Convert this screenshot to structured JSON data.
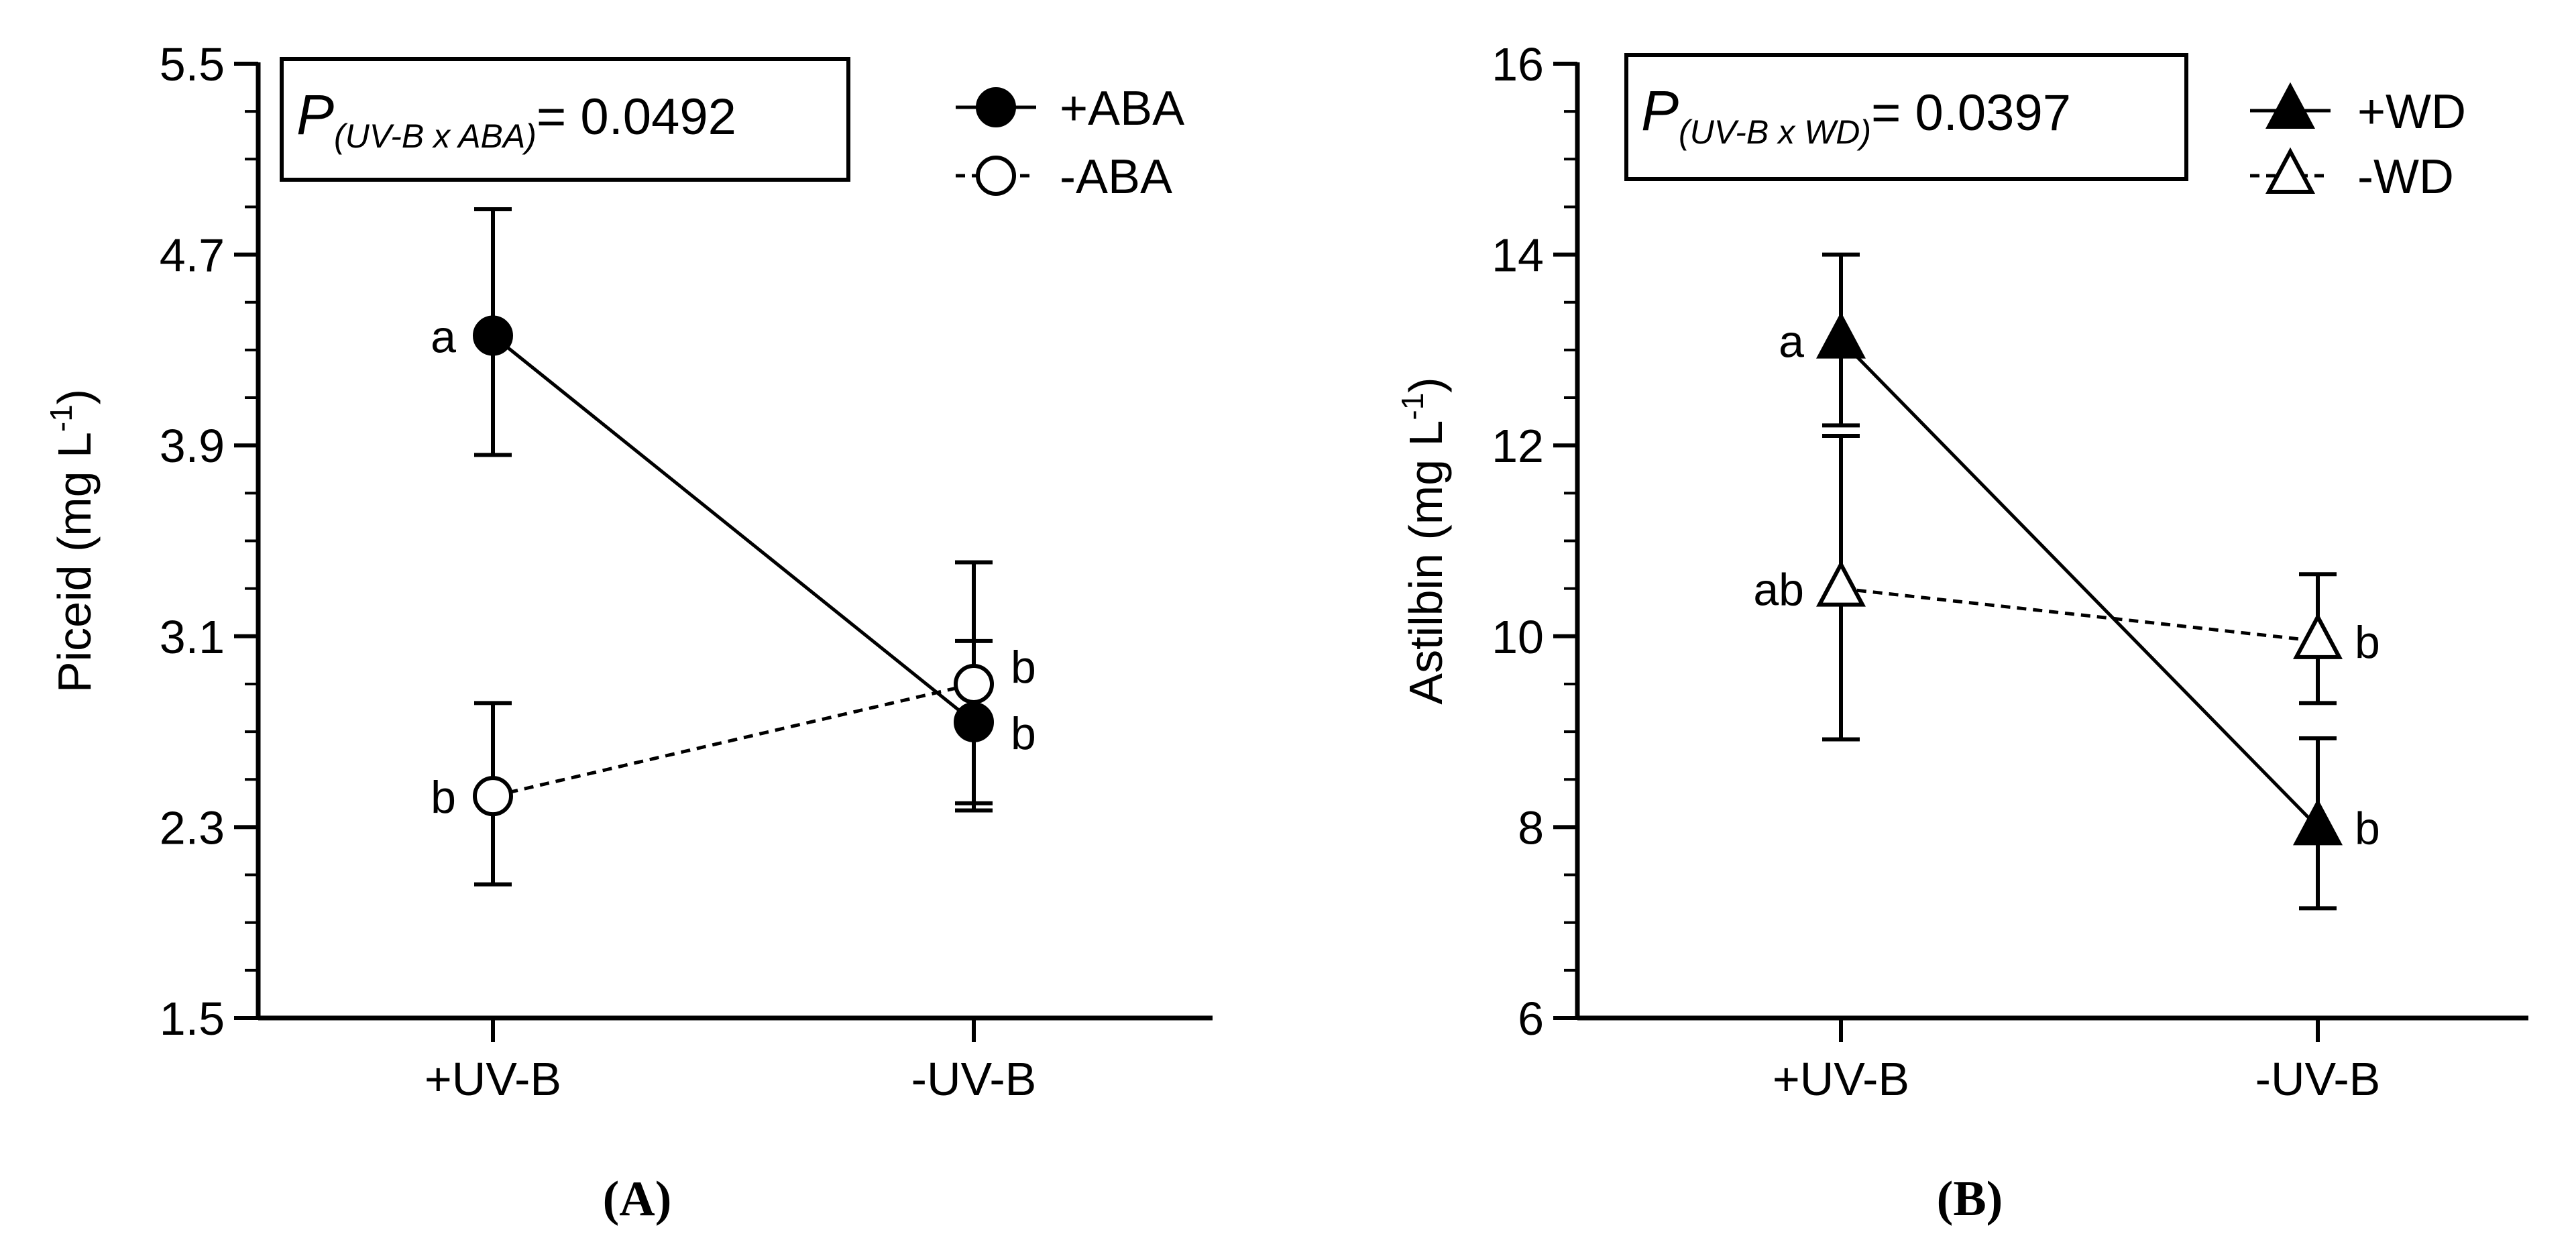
{
  "chart_data": [
    {
      "type": "line",
      "panel_label": "(A)",
      "ylabel": "Piceid (mg L-1)",
      "ylabel_main": "Piceid (mg L",
      "ylabel_sup": "-1",
      "ylabel_end": ")",
      "ylim": [
        1.5,
        5.5
      ],
      "yticks": [
        "1.5",
        "2.3",
        "3.1",
        "3.9",
        "4.7",
        "5.5"
      ],
      "categories": [
        "+UV-B",
        "-UV-B"
      ],
      "p_annotation": {
        "prefix": "P",
        "subscript": "(UV-B x ABA)",
        "value": "= 0.0492"
      },
      "series": [
        {
          "name": "+ABA",
          "marker": "circle-filled",
          "line": "solid",
          "values": [
            4.36,
            2.74
          ],
          "err_upper": [
            4.89,
            3.41
          ],
          "err_lower": [
            3.86,
            2.4
          ],
          "labels": [
            "a",
            "b"
          ]
        },
        {
          "name": "-ABA",
          "marker": "circle-open",
          "line": "dashed",
          "values": [
            2.43,
            2.9
          ],
          "err_upper": [
            2.82,
            3.08
          ],
          "err_lower": [
            2.06,
            2.37
          ],
          "labels": [
            "b",
            "b"
          ]
        }
      ],
      "legend_position": "top-right"
    },
    {
      "type": "line",
      "panel_label": "(B)",
      "ylabel": "Astilbin (mg L-1)",
      "ylabel_main": "Astilbin (mg L",
      "ylabel_sup": "-1",
      "ylabel_end": ")",
      "ylim": [
        6,
        16
      ],
      "yticks": [
        "6",
        "8",
        "10",
        "12",
        "14",
        "16"
      ],
      "categories": [
        "+UV-B",
        "-UV-B"
      ],
      "p_annotation": {
        "prefix": "P",
        "subscript": "(UV-B x WD)",
        "value": "= 0.0397"
      },
      "series": [
        {
          "name": "+WD",
          "marker": "triangle-filled",
          "line": "solid",
          "values": [
            13.1,
            8.0
          ],
          "err_upper": [
            14.0,
            8.93
          ],
          "err_lower": [
            12.21,
            7.15
          ],
          "labels": [
            "a",
            "b"
          ]
        },
        {
          "name": "-WD",
          "marker": "triangle-open",
          "line": "dashed",
          "values": [
            10.5,
            9.95
          ],
          "err_upper": [
            12.1,
            10.65
          ],
          "err_lower": [
            8.92,
            9.3
          ],
          "labels": [
            "ab",
            "b"
          ]
        }
      ],
      "legend_position": "top-right"
    }
  ]
}
